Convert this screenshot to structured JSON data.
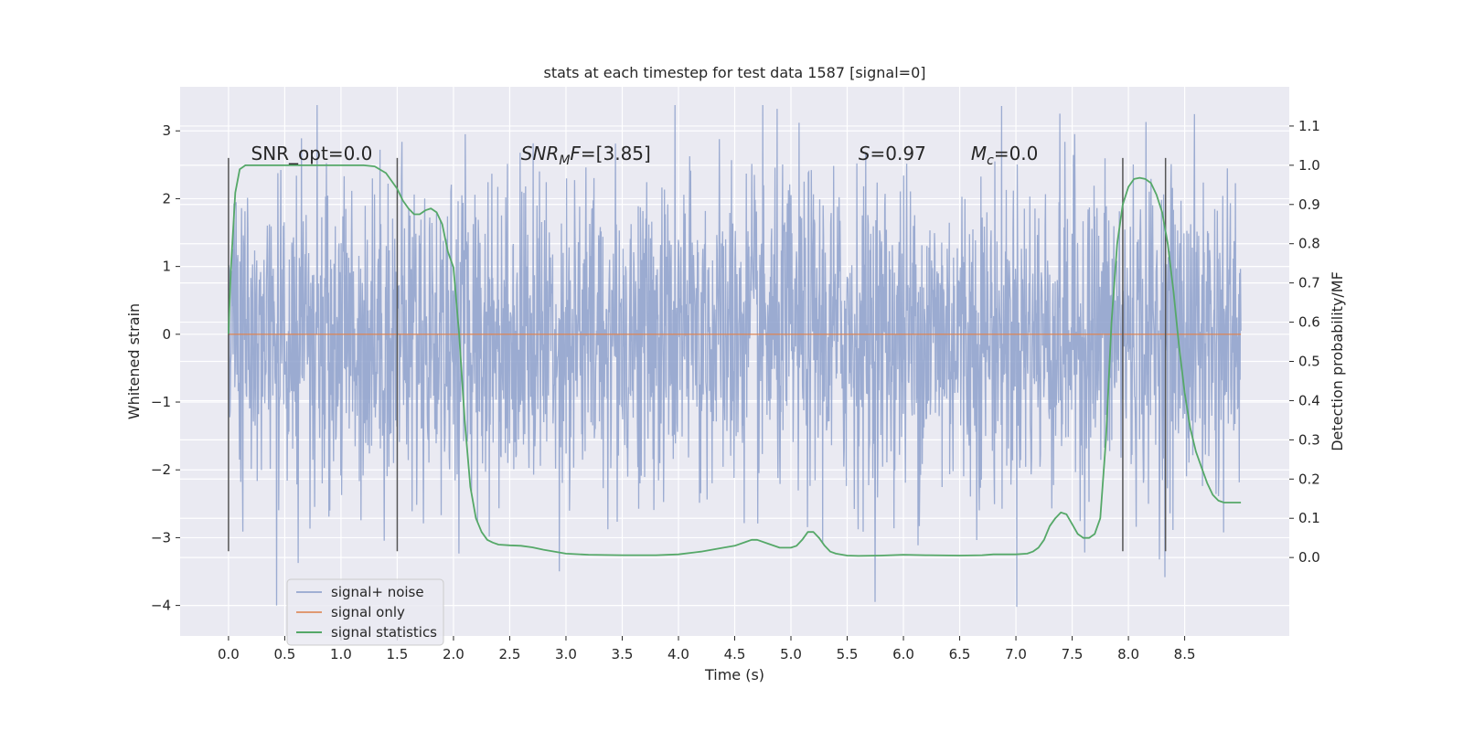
{
  "chart_data": {
    "type": "line",
    "title": "stats at each timestep for test data 1587 [signal=0]",
    "xlabel": "Time (s)",
    "ylabel": "Whitened strain",
    "ylabel_right": "Detection probability/MF",
    "xlim": [
      -0.43,
      9.43
    ],
    "ylim": [
      -4.45,
      3.65
    ],
    "ylim_right": [
      -0.2,
      1.2
    ],
    "xticks": [
      0.0,
      0.5,
      1.0,
      1.5,
      2.0,
      2.5,
      3.0,
      3.5,
      4.0,
      4.5,
      5.0,
      5.5,
      6.0,
      6.5,
      7.0,
      7.5,
      8.0,
      8.5
    ],
    "xtick_labels": [
      "0.0",
      "0.5",
      "1.0",
      "1.5",
      "2.0",
      "2.5",
      "3.0",
      "3.5",
      "4.0",
      "4.5",
      "5.0",
      "5.5",
      "6.0",
      "6.5",
      "7.0",
      "7.5",
      "8.0",
      "8.5"
    ],
    "yticks": [
      3,
      2,
      1,
      0,
      -1,
      -2,
      -3,
      -4
    ],
    "ytick_labels": [
      "3",
      "2",
      "1",
      "0",
      "−1",
      "−2",
      "−3",
      "−4"
    ],
    "yticks_right": [
      1.1,
      1.0,
      0.9,
      0.8,
      0.7,
      0.6,
      0.5,
      0.4,
      0.3,
      0.2,
      0.1,
      0.0
    ],
    "ytick_labels_right": [
      "1.1",
      "1.0",
      "0.9",
      "0.8",
      "0.7",
      "0.6",
      "0.5",
      "0.4",
      "0.3",
      "0.2",
      "0.1",
      "0.0"
    ],
    "grid": true,
    "legend_position": "lower-left",
    "noise": {
      "name": "signal+ noise",
      "color": "#8da0cb",
      "x_range": [
        0.0,
        9.0
      ],
      "typical_amplitude": 1.4,
      "max_value": 3.38,
      "min_value": -4.02
    },
    "series": [
      {
        "name": "signal only",
        "color": "#dd8452",
        "axis": "left",
        "x": [
          0.0,
          9.0
        ],
        "y": [
          0.0,
          0.0
        ]
      },
      {
        "name": "signal statistics",
        "color": "#55a868",
        "axis": "right",
        "x": [
          0.0,
          0.02,
          0.06,
          0.1,
          0.15,
          0.25,
          0.4,
          0.6,
          0.8,
          1.0,
          1.2,
          1.3,
          1.4,
          1.5,
          1.55,
          1.6,
          1.65,
          1.7,
          1.75,
          1.8,
          1.85,
          1.9,
          1.95,
          2.0,
          2.05,
          2.1,
          2.15,
          2.2,
          2.25,
          2.3,
          2.35,
          2.4,
          2.5,
          2.6,
          2.7,
          2.8,
          3.0,
          3.2,
          3.5,
          3.8,
          4.0,
          4.2,
          4.4,
          4.5,
          4.6,
          4.65,
          4.7,
          4.8,
          4.9,
          5.0,
          5.05,
          5.1,
          5.15,
          5.2,
          5.25,
          5.3,
          5.35,
          5.4,
          5.5,
          5.6,
          5.8,
          6.0,
          6.2,
          6.5,
          6.7,
          6.8,
          7.0,
          7.1,
          7.15,
          7.2,
          7.25,
          7.3,
          7.35,
          7.4,
          7.45,
          7.5,
          7.55,
          7.6,
          7.65,
          7.7,
          7.75,
          7.8,
          7.85,
          7.9,
          7.95,
          8.0,
          8.05,
          8.1,
          8.15,
          8.2,
          8.25,
          8.3,
          8.35,
          8.4,
          8.45,
          8.5,
          8.55,
          8.6,
          8.65,
          8.7,
          8.75,
          8.8,
          8.85,
          8.9,
          8.95,
          9.0
        ],
        "y": [
          0.57,
          0.73,
          0.93,
          0.99,
          1.0,
          1.0,
          1.0,
          1.0,
          1.0,
          1.0,
          1.0,
          0.997,
          0.98,
          0.94,
          0.91,
          0.89,
          0.875,
          0.875,
          0.885,
          0.89,
          0.88,
          0.85,
          0.78,
          0.74,
          0.57,
          0.35,
          0.18,
          0.1,
          0.065,
          0.045,
          0.038,
          0.033,
          0.031,
          0.03,
          0.026,
          0.02,
          0.01,
          0.007,
          0.006,
          0.006,
          0.008,
          0.015,
          0.025,
          0.03,
          0.04,
          0.045,
          0.045,
          0.035,
          0.025,
          0.025,
          0.03,
          0.045,
          0.065,
          0.065,
          0.05,
          0.03,
          0.015,
          0.01,
          0.005,
          0.004,
          0.005,
          0.007,
          0.006,
          0.005,
          0.006,
          0.008,
          0.008,
          0.01,
          0.015,
          0.025,
          0.045,
          0.08,
          0.1,
          0.115,
          0.11,
          0.085,
          0.06,
          0.05,
          0.05,
          0.06,
          0.1,
          0.3,
          0.6,
          0.8,
          0.9,
          0.945,
          0.965,
          0.968,
          0.965,
          0.955,
          0.925,
          0.88,
          0.8,
          0.68,
          0.54,
          0.42,
          0.33,
          0.27,
          0.23,
          0.19,
          0.16,
          0.145,
          0.14,
          0.14,
          0.14,
          0.14
        ]
      }
    ],
    "vertical_lines": [
      0.0,
      1.5,
      7.95,
      8.33
    ],
    "vertical_line_range": [
      -3.2,
      2.6
    ],
    "annotations": [
      {
        "label": "SNR_opt=0.0",
        "x": 0.2,
        "y": 2.6
      },
      {
        "label": "SNR_MF=[3.85]",
        "x": 2.6,
        "y": 2.6
      },
      {
        "label": "S=0.97",
        "x": 5.6,
        "y": 2.6
      },
      {
        "label": "M_c=0.0",
        "x": 6.6,
        "y": 2.6
      }
    ]
  },
  "text": {
    "annot_snr_opt": "SNR_opt=0.0",
    "annot_snr_mf_main": "SNR",
    "annot_snr_mf_sub": "M",
    "annot_snr_mf_italic_tail": "F",
    "annot_snr_mf_value": "=[3.85]",
    "annot_s_italic": "S",
    "annot_s_value": "=0.97",
    "annot_mc_italic": "M",
    "annot_mc_sub": "c",
    "annot_mc_value": "=0.0"
  },
  "colors": {
    "plot_bg": "#eaeaf2",
    "grid": "#ffffff",
    "vline": "#555555",
    "legend_bg": "#eaeaf2",
    "legend_edge": "#cccccc"
  }
}
